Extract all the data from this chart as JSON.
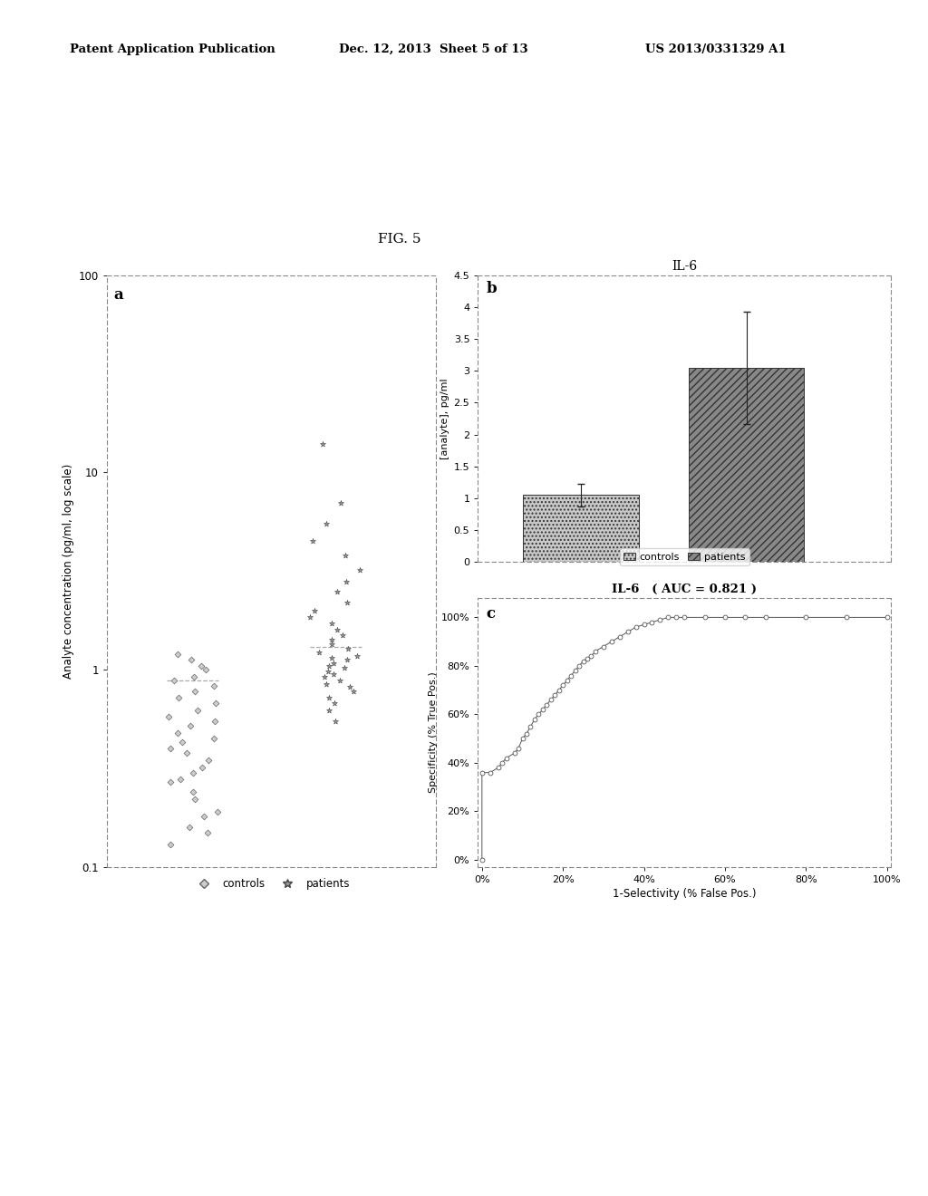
{
  "bg_color": "#ffffff",
  "header_left": "Patent Application Publication",
  "header_mid": "Dec. 12, 2013  Sheet 5 of 13",
  "header_right": "US 2013/0331329 A1",
  "fig_label": "FIG. 5",
  "panel_a": {
    "label": "a",
    "ylabel": "Analyte concentration (pg/ml, log scale)",
    "controls_y": [
      0.13,
      0.15,
      0.16,
      0.18,
      0.19,
      0.22,
      0.24,
      0.27,
      0.28,
      0.3,
      0.32,
      0.35,
      0.38,
      0.4,
      0.43,
      0.45,
      0.48,
      0.52,
      0.55,
      0.58,
      0.62,
      0.68,
      0.72,
      0.78,
      0.83,
      0.88,
      0.92,
      1.0,
      1.05,
      1.12,
      1.2
    ],
    "patients_y": [
      0.55,
      0.62,
      0.68,
      0.72,
      0.78,
      0.82,
      0.85,
      0.88,
      0.92,
      0.95,
      0.98,
      1.02,
      1.05,
      1.08,
      1.12,
      1.15,
      1.18,
      1.22,
      1.28,
      1.35,
      1.42,
      1.5,
      1.6,
      1.72,
      1.85,
      2.0,
      2.2,
      2.5,
      2.8,
      3.2,
      3.8,
      4.5,
      5.5,
      7.0,
      14.0
    ],
    "controls_median": 0.88,
    "patients_median": 1.3,
    "ylim_min": 0.1,
    "ylim_max": 100,
    "yticks": [
      0.1,
      1,
      10,
      100
    ],
    "ytick_labels": [
      "0.1",
      "1",
      "10",
      "100"
    ]
  },
  "panel_b": {
    "label": "b",
    "title": "IL-6",
    "ylabel": "[analyte], pg/ml",
    "values": [
      1.05,
      3.05
    ],
    "errors": [
      0.18,
      0.88
    ],
    "ylim": [
      0,
      4.5
    ],
    "yticks": [
      0,
      0.5,
      1.0,
      1.5,
      2.0,
      2.5,
      3.0,
      3.5,
      4.0,
      4.5
    ],
    "ytick_labels": [
      "0",
      "0.5",
      "1",
      "1.5",
      "2",
      "2.5",
      "3",
      "3.5",
      "4",
      "4.5"
    ],
    "bar_color_ctrl": "#c8c8c8",
    "bar_color_pat": "#888888",
    "bar_hatch_ctrl": "....",
    "bar_hatch_pat": "////"
  },
  "panel_c": {
    "label": "c",
    "title": "IL-6   ( AUC = 0.821 )",
    "xlabel": "1-Selectivity (% False Pos.)",
    "ylabel": "Specificity (% True Pos.)",
    "roc_x": [
      0.0,
      0.0,
      0.02,
      0.04,
      0.05,
      0.06,
      0.08,
      0.09,
      0.1,
      0.11,
      0.12,
      0.13,
      0.14,
      0.15,
      0.16,
      0.17,
      0.18,
      0.19,
      0.2,
      0.21,
      0.22,
      0.23,
      0.24,
      0.25,
      0.26,
      0.27,
      0.28,
      0.3,
      0.32,
      0.34,
      0.36,
      0.38,
      0.4,
      0.42,
      0.44,
      0.46,
      0.48,
      0.5,
      0.55,
      0.6,
      0.65,
      0.7,
      0.8,
      0.9,
      1.0
    ],
    "roc_y": [
      0.0,
      0.36,
      0.36,
      0.38,
      0.4,
      0.42,
      0.44,
      0.46,
      0.5,
      0.52,
      0.55,
      0.58,
      0.6,
      0.62,
      0.64,
      0.66,
      0.68,
      0.7,
      0.72,
      0.74,
      0.76,
      0.78,
      0.8,
      0.82,
      0.83,
      0.84,
      0.86,
      0.88,
      0.9,
      0.92,
      0.94,
      0.96,
      0.97,
      0.98,
      0.99,
      1.0,
      1.0,
      1.0,
      1.0,
      1.0,
      1.0,
      1.0,
      1.0,
      1.0,
      1.0
    ],
    "xticks": [
      0,
      0.2,
      0.4,
      0.6,
      0.8,
      1.0
    ],
    "xtick_labels": [
      "0%",
      "20%",
      "40%",
      "60%",
      "80%",
      "100%"
    ],
    "yticks": [
      0,
      0.2,
      0.4,
      0.6,
      0.8,
      1.0
    ],
    "ytick_labels": [
      "0%",
      "20%",
      "40%",
      "60%",
      "80%",
      "100%"
    ]
  }
}
